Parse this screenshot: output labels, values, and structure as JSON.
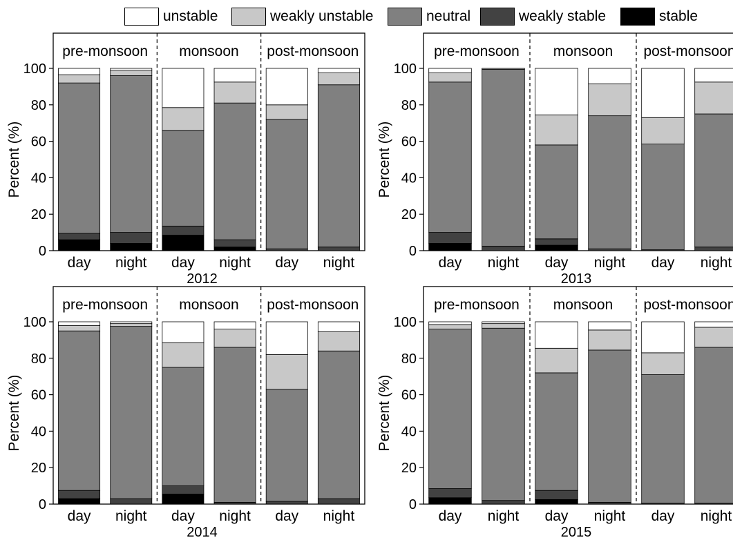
{
  "chart_data": {
    "type": "bar",
    "stacked": true,
    "legend_position": "top",
    "legend": [
      {
        "key": "unstable",
        "label": "unstable",
        "color": "#ffffff"
      },
      {
        "key": "weakly_unstable",
        "label": "weakly unstable",
        "color": "#c8c8c8"
      },
      {
        "key": "neutral",
        "label": "neutral",
        "color": "#808080"
      },
      {
        "key": "weakly_stable",
        "label": "weakly stable",
        "color": "#424242"
      },
      {
        "key": "stable",
        "label": "stable",
        "color": "#000000"
      }
    ],
    "season_labels": [
      "pre-monsoon",
      "monsoon",
      "post-monsoon"
    ],
    "categories": [
      "day",
      "night",
      "day",
      "night",
      "day",
      "night"
    ],
    "ylabel": "Percent (%)",
    "ylim": [
      0,
      100
    ],
    "yticks": [
      0,
      20,
      40,
      60,
      80,
      100
    ],
    "panels": [
      {
        "xlabel": "2012",
        "bars": [
          {
            "stable": 6,
            "weakly_stable": 3.5,
            "neutral": 82.5,
            "weakly_unstable": 4.5,
            "unstable": 3.5
          },
          {
            "stable": 4,
            "weakly_stable": 6,
            "neutral": 86,
            "weakly_unstable": 3,
            "unstable": 1
          },
          {
            "stable": 8.5,
            "weakly_stable": 5,
            "neutral": 52.5,
            "weakly_unstable": 12.5,
            "unstable": 21.5
          },
          {
            "stable": 2,
            "weakly_stable": 4,
            "neutral": 75,
            "weakly_unstable": 11.5,
            "unstable": 7.5
          },
          {
            "stable": 0,
            "weakly_stable": 1,
            "neutral": 71,
            "weakly_unstable": 8,
            "unstable": 20
          },
          {
            "stable": 0,
            "weakly_stable": 2,
            "neutral": 89,
            "weakly_unstable": 6.5,
            "unstable": 2.5
          }
        ]
      },
      {
        "xlabel": "2013",
        "bars": [
          {
            "stable": 4,
            "weakly_stable": 6,
            "neutral": 82.5,
            "weakly_unstable": 5,
            "unstable": 2.5
          },
          {
            "stable": 0,
            "weakly_stable": 2.5,
            "neutral": 97,
            "weakly_unstable": 0.5,
            "unstable": 0
          },
          {
            "stable": 3,
            "weakly_stable": 3.5,
            "neutral": 51.5,
            "weakly_unstable": 16.5,
            "unstable": 25.5
          },
          {
            "stable": 0,
            "weakly_stable": 1,
            "neutral": 73,
            "weakly_unstable": 17.5,
            "unstable": 8.5
          },
          {
            "stable": 0,
            "weakly_stable": 0.5,
            "neutral": 58,
            "weakly_unstable": 14.5,
            "unstable": 27
          },
          {
            "stable": 0,
            "weakly_stable": 2,
            "neutral": 73,
            "weakly_unstable": 17.5,
            "unstable": 7.5
          }
        ]
      },
      {
        "xlabel": "2014",
        "bars": [
          {
            "stable": 3,
            "weakly_stable": 4.5,
            "neutral": 87.5,
            "weakly_unstable": 3,
            "unstable": 2
          },
          {
            "stable": 0,
            "weakly_stable": 3,
            "neutral": 94.5,
            "weakly_unstable": 1.5,
            "unstable": 1
          },
          {
            "stable": 5.5,
            "weakly_stable": 4.5,
            "neutral": 65,
            "weakly_unstable": 13.5,
            "unstable": 11.5
          },
          {
            "stable": 0,
            "weakly_stable": 1,
            "neutral": 85,
            "weakly_unstable": 10,
            "unstable": 4
          },
          {
            "stable": 0,
            "weakly_stable": 1.5,
            "neutral": 61.5,
            "weakly_unstable": 19,
            "unstable": 18
          },
          {
            "stable": 0,
            "weakly_stable": 3,
            "neutral": 81,
            "weakly_unstable": 10.5,
            "unstable": 5.5
          }
        ]
      },
      {
        "xlabel": "2015",
        "bars": [
          {
            "stable": 3.5,
            "weakly_stable": 5,
            "neutral": 87.5,
            "weakly_unstable": 2.5,
            "unstable": 1.5
          },
          {
            "stable": 0,
            "weakly_stable": 2,
            "neutral": 94.5,
            "weakly_unstable": 2.5,
            "unstable": 1
          },
          {
            "stable": 2.5,
            "weakly_stable": 5,
            "neutral": 64.5,
            "weakly_unstable": 13.5,
            "unstable": 14.5
          },
          {
            "stable": 0,
            "weakly_stable": 1,
            "neutral": 83.5,
            "weakly_unstable": 11,
            "unstable": 4.5
          },
          {
            "stable": 0,
            "weakly_stable": 0.5,
            "neutral": 70.5,
            "weakly_unstable": 12,
            "unstable": 17
          },
          {
            "stable": 0,
            "weakly_stable": 0.5,
            "neutral": 85.5,
            "weakly_unstable": 11,
            "unstable": 3
          }
        ]
      }
    ]
  }
}
